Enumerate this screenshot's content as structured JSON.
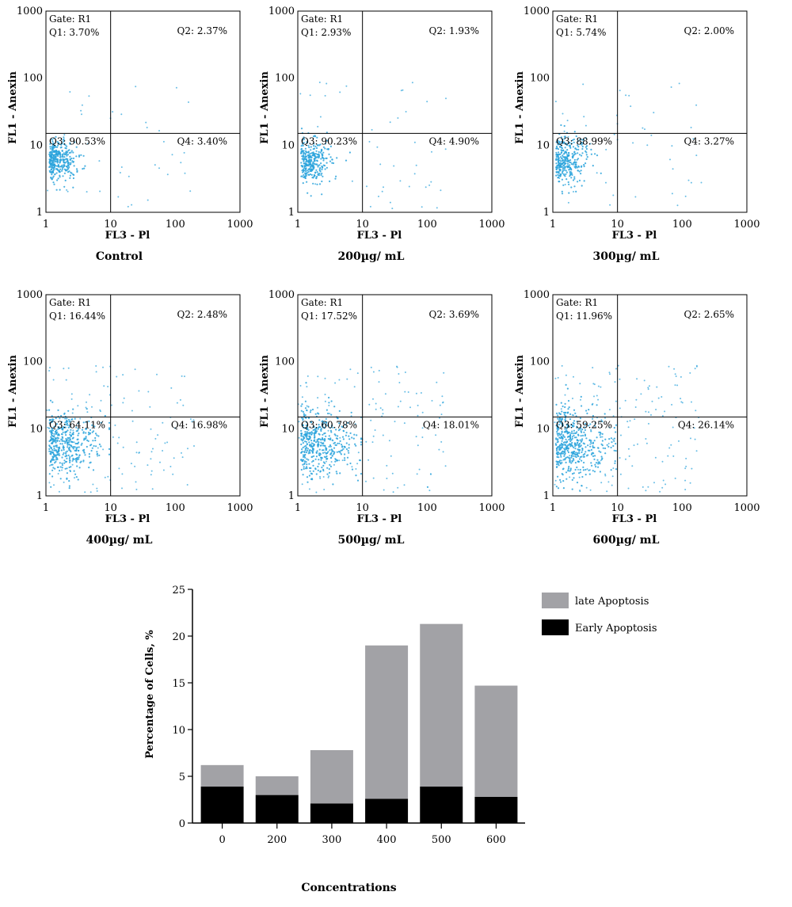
{
  "flow_panels": [
    {
      "caption": "Control",
      "gate": "Gate: R1",
      "q1": "Q1: 3.70%",
      "q2": "Q2: 2.37%",
      "q3": "Q3: 90.53%",
      "q4": "Q4: 3.40%"
    },
    {
      "caption": "200µg/ mL",
      "gate": "Gate: R1",
      "q1": "Q1: 2.93%",
      "q2": "Q2: 1.93%",
      "q3": "Q3: 90.23%",
      "q4": "Q4: 4.90%"
    },
    {
      "caption": "300µg/ mL",
      "gate": "Gate: R1",
      "q1": "Q1: 5.74%",
      "q2": "Q2: 2.00%",
      "q3": "Q3: 88.99%",
      "q4": "Q4: 3.27%"
    },
    {
      "caption": "400µg/ mL",
      "gate": "Gate: R1",
      "q1": "Q1: 16.44%",
      "q2": "Q2: 2.48%",
      "q3": "Q3: 64.11%",
      "q4": "Q4: 16.98%"
    },
    {
      "caption": "500µg/ mL",
      "gate": "Gate: R1",
      "q1": "Q1: 17.52%",
      "q2": "Q2: 3.69%",
      "q3": "Q3: 60.78%",
      "q4": "Q4: 18.01%"
    },
    {
      "caption": "600µg/ mL",
      "gate": "Gate: R1",
      "q1": "Q1: 11.96%",
      "q2": "Q2: 2.65%",
      "q3": "Q3: 59.25%",
      "q4": "Q4: 26.14%"
    }
  ],
  "flow_axes": {
    "xlabel": "FL3 - Pl",
    "ylabel": "FL1 - Anexin",
    "ticks": [
      "1",
      "10",
      "100",
      "1000"
    ],
    "gate_x": 10,
    "gate_y": 15,
    "dot_color": "#2aa3dc"
  },
  "chart_data": [
    {
      "type": "bar",
      "stacked": true,
      "categories": [
        "0",
        "200",
        "300",
        "400",
        "500",
        "600"
      ],
      "series": [
        {
          "name": "Early Apoptosis",
          "values": [
            3.9,
            3.0,
            2.1,
            2.6,
            3.9,
            2.8
          ],
          "color": "#000000"
        },
        {
          "name": "late Apoptosis",
          "values": [
            2.3,
            2.0,
            5.7,
            16.4,
            17.4,
            11.9
          ],
          "color": "#a2a2a6"
        }
      ],
      "xlabel": "Concentrations",
      "ylabel": "Percentage of Cells, %",
      "ylim": [
        0,
        25
      ],
      "yticks": [
        "0",
        "5",
        "10",
        "15",
        "20",
        "25"
      ],
      "legend_position": "top-right",
      "grid": false
    }
  ]
}
